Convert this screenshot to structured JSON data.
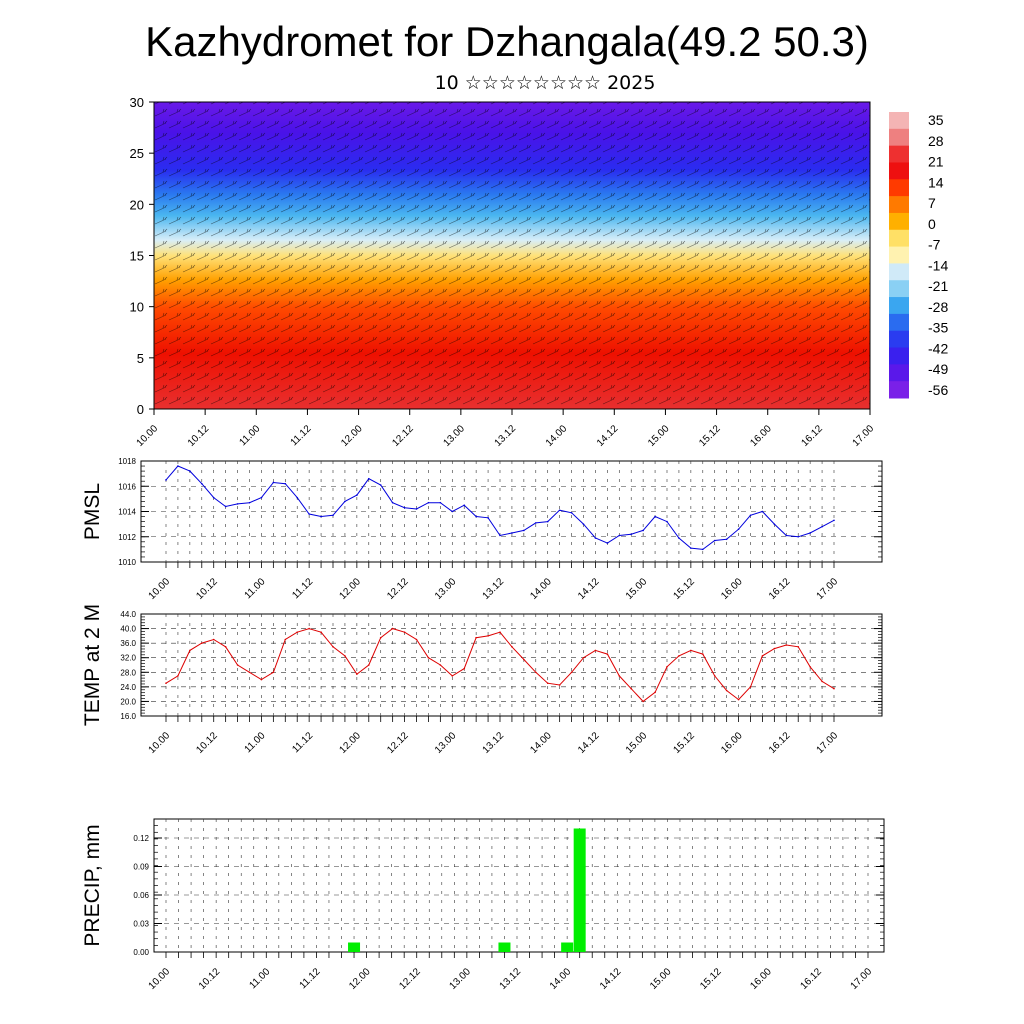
{
  "header": {
    "title": "Kazhydromet for Dzhangala(49.2 50.3)",
    "subtitle": "10 ☆☆☆☆☆☆☆☆ 2025"
  },
  "colors": {
    "pmsl_line": "#0000dd",
    "temp_line": "#dd0000",
    "precip_bar": "#00ee00",
    "axis": "#000000"
  },
  "chart_data": [
    {
      "type": "heatmap",
      "name_hint": "temperature-wind cross-section",
      "ylim": [
        0,
        30
      ],
      "y_ticks": [
        0,
        5,
        10,
        15,
        20,
        25,
        30
      ],
      "x_tick_labels": [
        "10.00",
        "10.12",
        "11.00",
        "11.12",
        "12.00",
        "12.12",
        "13.00",
        "13.12",
        "14.00",
        "14.12",
        "15.00",
        "15.12",
        "16.00",
        "16.12",
        "17.00"
      ],
      "colorbar_labels": [
        "35",
        "28",
        "21",
        "14",
        "7",
        "0",
        "-7",
        "-14",
        "-21",
        "-28",
        "-35",
        "-42",
        "-49",
        "-56"
      ],
      "colorbar_range": [
        -63,
        42
      ],
      "overlay": "wind barbs"
    },
    {
      "type": "line",
      "ylabel": "PMSL",
      "ylim": [
        1010,
        1018
      ],
      "y_ticks": [
        "1010",
        "1012",
        "1014",
        "1016",
        "1018"
      ],
      "x_tick_labels": [
        "10.00",
        "10.12",
        "11.00",
        "11.12",
        "12.00",
        "12.12",
        "13.00",
        "13.12",
        "14.00",
        "14.12",
        "15.00",
        "15.12",
        "16.00",
        "16.12",
        "17.00"
      ],
      "x_hours": [
        0,
        3,
        6,
        9,
        12,
        15,
        18,
        21,
        24,
        27,
        30,
        33,
        36,
        39,
        42,
        45,
        48,
        51,
        54,
        57,
        60,
        63,
        66,
        69,
        72,
        75,
        78,
        81,
        84,
        87,
        90,
        93,
        96,
        99,
        102,
        105,
        108,
        111,
        114,
        117,
        120,
        123,
        126,
        129,
        132,
        135,
        138,
        141,
        144,
        147,
        150,
        153,
        156,
        159,
        162,
        165,
        168
      ],
      "values": [
        1016.5,
        1017.6,
        1017.2,
        1016.2,
        1015.1,
        1014.4,
        1014.6,
        1014.7,
        1015.1,
        1016.3,
        1016.2,
        1015.1,
        1013.8,
        1013.6,
        1013.7,
        1014.8,
        1015.3,
        1016.6,
        1016.1,
        1014.7,
        1014.3,
        1014.2,
        1014.7,
        1014.7,
        1014.0,
        1014.5,
        1013.6,
        1013.5,
        1012.1,
        1012.3,
        1012.5,
        1013.1,
        1013.2,
        1014.1,
        1013.9,
        1013.0,
        1011.9,
        1011.5,
        1012.1,
        1012.2,
        1012.5,
        1013.6,
        1013.2,
        1011.9,
        1011.1,
        1011.0,
        1011.7,
        1011.8,
        1012.6,
        1013.7,
        1014.0,
        1013.0,
        1012.1,
        1012.0,
        1012.3,
        1012.8,
        1013.3
      ]
    },
    {
      "type": "line",
      "ylabel": "TEMP at 2 M",
      "ylim": [
        16,
        44
      ],
      "y_ticks": [
        "16.0",
        "20.0",
        "24.0",
        "28.0",
        "32.0",
        "36.0",
        "40.0",
        "44.0"
      ],
      "x_tick_labels": [
        "10.00",
        "10.12",
        "11.00",
        "11.12",
        "12.00",
        "12.12",
        "13.00",
        "13.12",
        "14.00",
        "14.12",
        "15.00",
        "15.12",
        "16.00",
        "16.12",
        "17.00"
      ],
      "x_hours": [
        0,
        3,
        6,
        9,
        12,
        15,
        18,
        21,
        24,
        27,
        30,
        33,
        36,
        39,
        42,
        45,
        48,
        51,
        54,
        57,
        60,
        63,
        66,
        69,
        72,
        75,
        78,
        81,
        84,
        87,
        90,
        93,
        96,
        99,
        102,
        105,
        108,
        111,
        114,
        117,
        120,
        123,
        126,
        129,
        132,
        135,
        138,
        141,
        144,
        147,
        150,
        153,
        156,
        159,
        162,
        165,
        168
      ],
      "values": [
        25.0,
        27.0,
        34.0,
        36.0,
        37.0,
        35.0,
        30.0,
        28.0,
        26.0,
        28.0,
        37.0,
        39.0,
        40.0,
        39.0,
        35.0,
        32.5,
        27.5,
        30.0,
        37.5,
        40.0,
        39.0,
        37.0,
        32.0,
        30.0,
        27.0,
        29.0,
        37.5,
        38.0,
        39.0,
        35.0,
        31.5,
        28.0,
        25.0,
        24.5,
        28.0,
        32.0,
        34.0,
        33.0,
        27.0,
        23.5,
        20.0,
        22.5,
        29.5,
        32.5,
        34.0,
        33.0,
        27.0,
        23.0,
        20.5,
        24.0,
        32.5,
        34.5,
        35.5,
        35.0,
        29.5,
        25.5,
        23.5
      ]
    },
    {
      "type": "bar",
      "ylabel": "PRECIP, mm",
      "ylim": [
        0,
        0.14
      ],
      "y_ticks": [
        "0.00",
        "0.03",
        "0.06",
        "0.09",
        "0.12"
      ],
      "x_tick_labels": [
        "10.00",
        "10.12",
        "11.00",
        "11.12",
        "12.00",
        "12.12",
        "13.00",
        "13.12",
        "14.00",
        "14.12",
        "15.00",
        "15.12",
        "16.00",
        "16.12",
        "17.00"
      ],
      "bars": [
        {
          "hour": 45,
          "value": 0.01
        },
        {
          "hour": 81,
          "value": 0.01
        },
        {
          "hour": 96,
          "value": 0.01
        },
        {
          "hour": 99,
          "value": 0.13
        }
      ]
    }
  ]
}
